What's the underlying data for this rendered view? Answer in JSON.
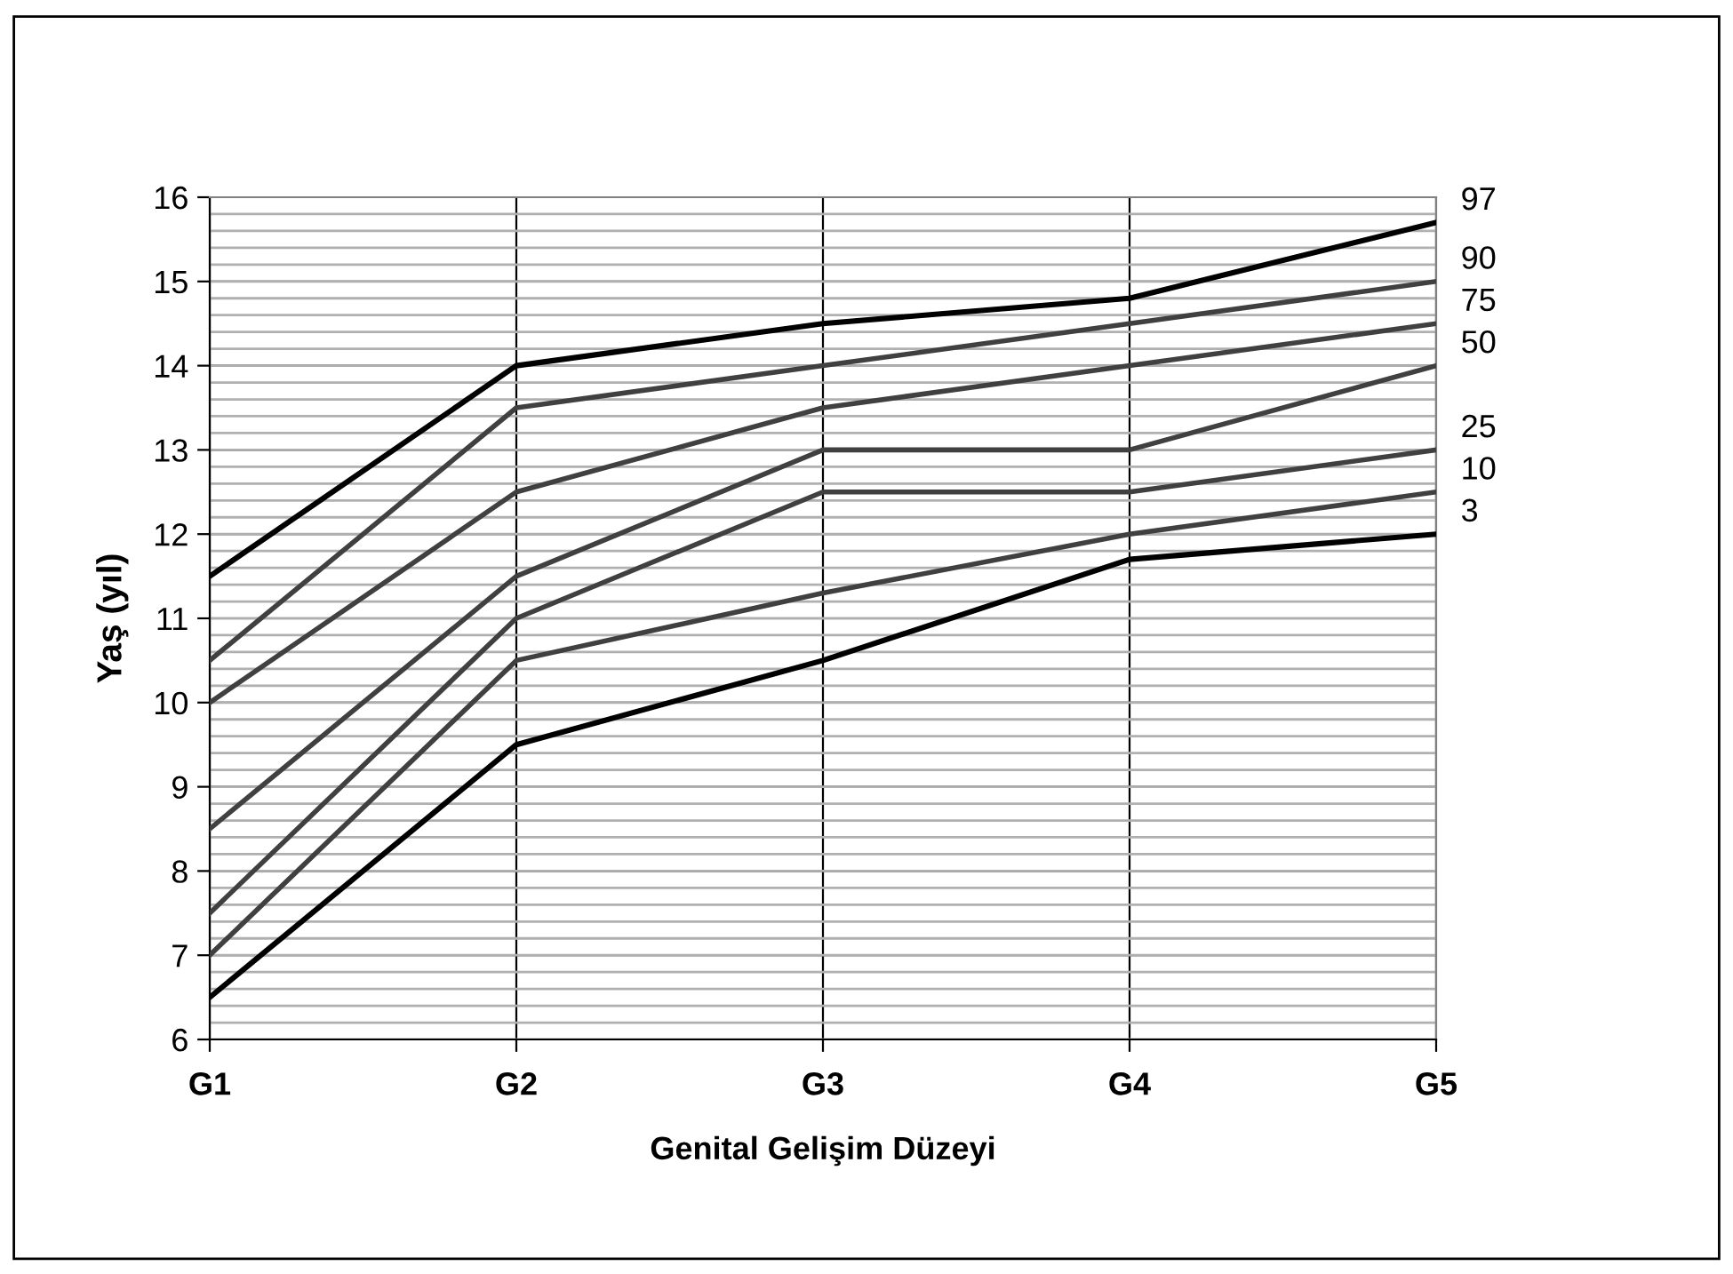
{
  "chart_data": {
    "type": "line",
    "xlabel": "Genital Gelişim Düzeyi",
    "ylabel": "Yaş (yıl)",
    "categories": [
      "G1",
      "G2",
      "G3",
      "G4",
      "G5"
    ],
    "series": [
      {
        "name": "97",
        "color": "#000000",
        "values": [
          11.5,
          14,
          14.5,
          14.8,
          15.7
        ]
      },
      {
        "name": "90",
        "color": "#404040",
        "values": [
          10.5,
          13.5,
          14,
          14.5,
          15
        ]
      },
      {
        "name": "75",
        "color": "#404040",
        "values": [
          10,
          12.5,
          13.5,
          14,
          14.5
        ]
      },
      {
        "name": "50",
        "color": "#404040",
        "values": [
          8.5,
          11.5,
          13,
          13,
          14
        ]
      },
      {
        "name": "25",
        "color": "#404040",
        "values": [
          7.5,
          11,
          12.5,
          12.5,
          13
        ]
      },
      {
        "name": "10",
        "color": "#404040",
        "values": [
          7,
          10.5,
          11.3,
          12,
          12.5
        ]
      },
      {
        "name": "3",
        "color": "#000000",
        "values": [
          6.5,
          9.5,
          10.5,
          11.7,
          12
        ]
      }
    ],
    "ylim": [
      6,
      16
    ],
    "yticks": [
      6,
      7,
      8,
      9,
      10,
      11,
      12,
      13,
      14,
      15,
      16
    ],
    "grid": true,
    "legend": false,
    "marker": "none",
    "line_style": "solid"
  }
}
